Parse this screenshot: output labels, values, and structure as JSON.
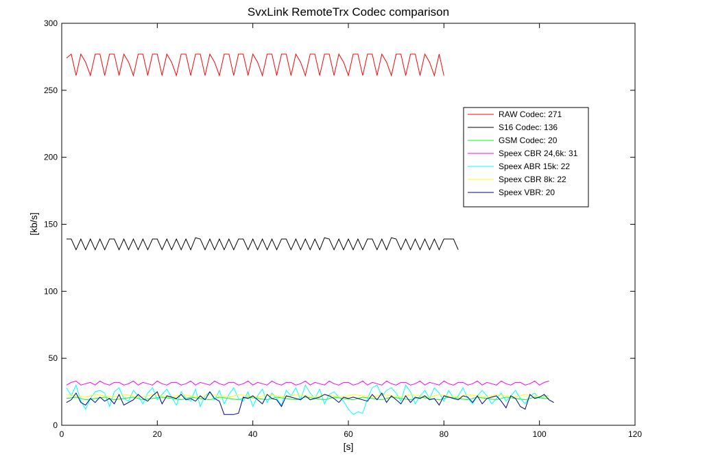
{
  "chart_data": {
    "type": "line",
    "title": "SvxLink RemoteTrx Codec comparison",
    "xlabel": "[s]",
    "ylabel": "[kb/s]",
    "xlim": [
      0,
      120
    ],
    "ylim": [
      0,
      300
    ],
    "xticks": [
      "0",
      "20",
      "40",
      "60",
      "80",
      "100",
      "120"
    ],
    "yticks": [
      "0",
      "50",
      "100",
      "150",
      "200",
      "250",
      "300"
    ],
    "grid": false,
    "legend_position": "right",
    "series": [
      {
        "name": "RAW Codec: 271",
        "color": "#ff0000",
        "x": [
          1,
          2,
          3,
          4,
          5,
          6,
          7,
          8,
          9,
          10,
          11,
          12,
          13,
          14,
          15,
          16,
          17,
          18,
          19,
          20,
          21,
          22,
          23,
          24,
          25,
          26,
          27,
          28,
          29,
          30,
          31,
          32,
          33,
          34,
          35,
          36,
          37,
          38,
          39,
          40,
          41,
          42,
          43,
          44,
          45,
          46,
          47,
          48,
          49,
          50,
          51,
          52,
          53,
          54,
          55,
          56,
          57,
          58,
          59,
          60,
          61,
          62,
          63,
          64,
          65,
          66,
          67,
          68,
          69,
          70,
          71,
          72,
          73,
          74,
          75,
          76,
          77,
          78,
          79,
          80
        ],
        "y": [
          274,
          277,
          261,
          277,
          271,
          261,
          277,
          277,
          261,
          277,
          277,
          261,
          277,
          271,
          261,
          277,
          277,
          261,
          277,
          277,
          261,
          277,
          271,
          261,
          277,
          277,
          261,
          277,
          277,
          261,
          277,
          271,
          261,
          277,
          277,
          261,
          277,
          277,
          261,
          277,
          271,
          261,
          277,
          277,
          261,
          277,
          277,
          261,
          277,
          271,
          261,
          277,
          277,
          261,
          277,
          277,
          261,
          277,
          271,
          261,
          277,
          277,
          261,
          277,
          277,
          261,
          277,
          271,
          261,
          277,
          277,
          261,
          277,
          277,
          261,
          277,
          271,
          261,
          277,
          261
        ]
      },
      {
        "name": "S16 Codec: 136",
        "color": "#000000",
        "x": [
          1,
          2,
          3,
          4,
          5,
          6,
          7,
          8,
          9,
          10,
          11,
          12,
          13,
          14,
          15,
          16,
          17,
          18,
          19,
          20,
          21,
          22,
          23,
          24,
          25,
          26,
          27,
          28,
          29,
          30,
          31,
          32,
          33,
          34,
          35,
          36,
          37,
          38,
          39,
          40,
          41,
          42,
          43,
          44,
          45,
          46,
          47,
          48,
          49,
          50,
          51,
          52,
          53,
          54,
          55,
          56,
          57,
          58,
          59,
          60,
          61,
          62,
          63,
          64,
          65,
          66,
          67,
          68,
          69,
          70,
          71,
          72,
          73,
          74,
          75,
          76,
          77,
          78,
          79,
          80,
          81,
          82,
          83
        ],
        "y": [
          139,
          139,
          131,
          139,
          131,
          139,
          131,
          139,
          131,
          139,
          139,
          131,
          139,
          131,
          139,
          131,
          139,
          131,
          139,
          139,
          131,
          139,
          131,
          139,
          131,
          139,
          131,
          140,
          139,
          131,
          139,
          131,
          139,
          131,
          139,
          131,
          139,
          139,
          131,
          139,
          131,
          139,
          131,
          139,
          131,
          139,
          139,
          131,
          139,
          131,
          139,
          131,
          139,
          131,
          140,
          139,
          131,
          139,
          131,
          139,
          131,
          139,
          131,
          139,
          139,
          131,
          139,
          131,
          140,
          139,
          131,
          139,
          131,
          139,
          131,
          139,
          131,
          139,
          131,
          139,
          139,
          139,
          131
        ]
      },
      {
        "name": "GSM Codec: 20",
        "color": "#00ff00",
        "x": [
          1,
          3,
          5,
          7,
          9,
          11,
          13,
          15,
          17,
          19,
          21,
          23,
          25,
          27,
          29,
          31,
          33,
          35,
          37,
          39,
          41,
          43,
          45,
          47,
          49,
          51,
          53,
          55,
          57,
          59,
          61,
          63,
          65,
          67,
          69,
          71,
          73,
          75,
          77,
          79,
          81,
          83,
          85,
          87,
          89,
          91,
          93,
          95,
          97,
          99,
          101,
          102
        ],
        "y": [
          20,
          21,
          19,
          20,
          21,
          19,
          20,
          21,
          19,
          20,
          21,
          20,
          19,
          21,
          20,
          19,
          21,
          20,
          19,
          21,
          20,
          19,
          21,
          20,
          19,
          21,
          20,
          19,
          21,
          20,
          19,
          21,
          20,
          19,
          21,
          20,
          19,
          21,
          20,
          19,
          21,
          20,
          19,
          21,
          20,
          19,
          21,
          20,
          19,
          21,
          20,
          20
        ]
      },
      {
        "name": "Speex CBR 24,6k: 31",
        "color": "#ff00ff",
        "x": [
          1,
          2,
          3,
          4,
          5,
          6,
          7,
          8,
          9,
          10,
          11,
          12,
          13,
          14,
          15,
          16,
          17,
          18,
          19,
          20,
          21,
          22,
          23,
          24,
          25,
          26,
          27,
          28,
          29,
          30,
          31,
          32,
          33,
          34,
          35,
          36,
          37,
          38,
          39,
          40,
          41,
          42,
          43,
          44,
          45,
          46,
          47,
          48,
          49,
          50,
          51,
          52,
          53,
          54,
          55,
          56,
          57,
          58,
          59,
          60,
          61,
          62,
          63,
          64,
          65,
          66,
          67,
          68,
          69,
          70,
          71,
          72,
          73,
          74,
          75,
          76,
          77,
          78,
          79,
          80,
          81,
          82,
          83,
          84,
          85,
          86,
          87,
          88,
          89,
          90,
          91,
          92,
          93,
          94,
          95,
          96,
          97,
          98,
          99,
          100,
          101,
          102
        ],
        "y": [
          30,
          32,
          33,
          30,
          31,
          32,
          30,
          33,
          31,
          30,
          32,
          32,
          30,
          31,
          33,
          30,
          32,
          31,
          30,
          33,
          31,
          30,
          32,
          32,
          30,
          31,
          33,
          30,
          32,
          31,
          30,
          33,
          31,
          30,
          32,
          32,
          30,
          31,
          33,
          30,
          32,
          31,
          30,
          33,
          31,
          30,
          32,
          32,
          30,
          31,
          33,
          30,
          32,
          31,
          30,
          33,
          31,
          30,
          32,
          32,
          30,
          31,
          33,
          30,
          32,
          31,
          30,
          33,
          31,
          30,
          32,
          32,
          30,
          31,
          33,
          30,
          32,
          31,
          30,
          33,
          31,
          30,
          32,
          32,
          30,
          31,
          33,
          30,
          32,
          31,
          30,
          33,
          31,
          30,
          32,
          32,
          30,
          31,
          33,
          30,
          32,
          33
        ]
      },
      {
        "name": "Speex ABR 15k: 22",
        "color": "#00ffff",
        "x": [
          1,
          2,
          3,
          4,
          5,
          6,
          7,
          8,
          9,
          10,
          11,
          12,
          13,
          14,
          15,
          16,
          17,
          18,
          19,
          20,
          21,
          22,
          23,
          24,
          25,
          26,
          27,
          28,
          29,
          30,
          31,
          32,
          33,
          34,
          35,
          36,
          37,
          38,
          39,
          40,
          41,
          42,
          43,
          44,
          45,
          46,
          47,
          48,
          49,
          50,
          51,
          52,
          53,
          54,
          55,
          56,
          57,
          58,
          59,
          60,
          61,
          62,
          63,
          64,
          65,
          66,
          67,
          68,
          69,
          70,
          71,
          72,
          73,
          74,
          75,
          76,
          77,
          78,
          79,
          80,
          81,
          82,
          83,
          84,
          85,
          86,
          87,
          88,
          89,
          90,
          91,
          92,
          93,
          94,
          95,
          96,
          97,
          98,
          99,
          100,
          101,
          102
        ],
        "y": [
          28,
          22,
          30,
          18,
          12,
          20,
          25,
          26,
          24,
          14,
          25,
          28,
          20,
          18,
          26,
          22,
          16,
          24,
          28,
          19,
          23,
          27,
          21,
          15,
          25,
          20,
          18,
          27,
          14,
          22,
          25,
          19,
          26,
          16,
          23,
          28,
          20,
          18,
          25,
          14,
          22,
          27,
          17,
          24,
          20,
          15,
          26,
          22,
          28,
          19,
          30,
          24,
          20,
          27,
          16,
          23,
          25,
          21,
          18,
          12,
          8,
          10,
          9,
          20,
          28,
          30,
          22,
          26,
          28,
          24,
          18,
          30,
          25,
          16,
          22,
          26,
          20,
          28,
          24,
          18,
          26,
          20,
          22,
          28,
          20,
          16,
          22,
          26,
          22,
          16,
          20,
          24,
          18,
          22,
          26,
          20,
          16,
          22,
          24,
          20,
          22,
          22
        ]
      },
      {
        "name": "Speex CBR 8k: 22",
        "color": "#ffff00",
        "x": [
          1,
          3,
          5,
          7,
          9,
          11,
          13,
          15,
          17,
          19,
          21,
          23,
          25,
          27,
          29,
          31,
          33,
          35,
          37,
          39,
          41,
          43,
          45,
          47,
          49,
          51,
          53,
          55,
          57,
          59,
          61,
          63,
          65,
          67,
          69,
          71,
          73,
          75,
          77,
          79,
          81,
          83,
          85,
          87,
          89,
          91,
          93,
          95,
          97,
          99,
          101,
          102
        ],
        "y": [
          23,
          22,
          21,
          23,
          22,
          21,
          23,
          22,
          21,
          23,
          22,
          21,
          23,
          22,
          21,
          23,
          22,
          21,
          23,
          22,
          21,
          23,
          22,
          21,
          23,
          22,
          21,
          23,
          22,
          21,
          23,
          22,
          21,
          23,
          22,
          21,
          23,
          22,
          21,
          23,
          22,
          21,
          23,
          22,
          21,
          23,
          22,
          21,
          23,
          22,
          21,
          22
        ]
      },
      {
        "name": "Speex VBR: 20",
        "color": "#00008b",
        "x": [
          1,
          2,
          3,
          4,
          5,
          6,
          7,
          8,
          9,
          10,
          11,
          12,
          13,
          14,
          15,
          16,
          17,
          18,
          19,
          20,
          21,
          22,
          23,
          24,
          25,
          26,
          27,
          28,
          29,
          30,
          31,
          32,
          33,
          34,
          35,
          36,
          37,
          38,
          39,
          40,
          41,
          42,
          43,
          44,
          45,
          46,
          47,
          48,
          49,
          50,
          51,
          52,
          53,
          54,
          55,
          56,
          57,
          58,
          59,
          60,
          61,
          62,
          63,
          64,
          65,
          66,
          67,
          68,
          69,
          70,
          71,
          72,
          73,
          74,
          75,
          76,
          77,
          78,
          79,
          80,
          81,
          82,
          83,
          84,
          85,
          86,
          87,
          88,
          89,
          90,
          91,
          92,
          93,
          94,
          95,
          96,
          97,
          98,
          99,
          100,
          101,
          102,
          103
        ],
        "y": [
          17,
          19,
          24,
          17,
          15,
          20,
          17,
          21,
          18,
          20,
          16,
          23,
          15,
          17,
          19,
          23,
          20,
          18,
          22,
          25,
          16,
          22,
          21,
          20,
          23,
          19,
          20,
          18,
          22,
          19,
          25,
          20,
          18,
          8,
          8,
          8,
          9,
          21,
          20,
          22,
          19,
          16,
          23,
          20,
          19,
          14,
          22,
          21,
          20,
          19,
          22,
          19,
          20,
          21,
          23,
          22,
          20,
          17,
          21,
          20,
          21,
          20,
          19,
          18,
          23,
          19,
          24,
          17,
          22,
          19,
          16,
          22,
          17,
          21,
          20,
          22,
          19,
          20,
          15,
          22,
          21,
          20,
          19,
          22,
          21,
          17,
          22,
          16,
          20,
          21,
          22,
          18,
          13,
          22,
          20,
          14,
          12,
          23,
          20,
          21,
          23,
          19,
          17
        ]
      }
    ]
  }
}
